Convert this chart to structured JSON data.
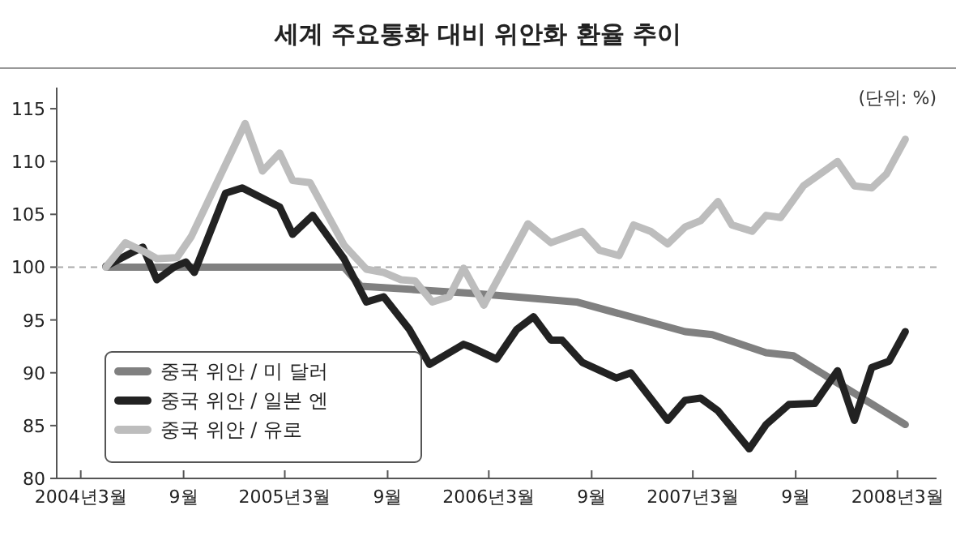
{
  "chart_data": {
    "type": "line",
    "title": "세계 주요통화 대비 위안화 환율 추이",
    "annotations": [
      "(단위: %)"
    ],
    "xlim": [
      "2004-01-18",
      "2008-05-10"
    ],
    "xticks": [
      {
        "value": "2004-03",
        "label": "2004년3월"
      },
      {
        "value": "2004-09",
        "label": "9월"
      },
      {
        "value": "2005-03",
        "label": "2005년3월"
      },
      {
        "value": "2005-09",
        "label": "9월"
      },
      {
        "value": "2006-03",
        "label": "2006년3월"
      },
      {
        "value": "2006-09",
        "label": "9월"
      },
      {
        "value": "2007-03",
        "label": "2007년3월"
      },
      {
        "value": "2007-09",
        "label": "9월"
      },
      {
        "value": "2008-03",
        "label": "2008년3월"
      }
    ],
    "ylim": [
      80,
      117
    ],
    "yticks": [
      80,
      85,
      90,
      95,
      100,
      105,
      110,
      115
    ],
    "grid": false,
    "legend": "bottom left",
    "marker": "none",
    "line_style": "solid",
    "ref_lines": [
      {
        "axis": "y",
        "value": 100,
        "color": "#aaaaaa",
        "line_style": "dashed"
      }
    ],
    "series": [
      {
        "name": "중국 위안 / 미 달러",
        "color": "#808080",
        "x": [
          "2004-04-15",
          "2005-06-15",
          "2005-07-15",
          "2006-02-05",
          "2006-08-05",
          "2007-02-15",
          "2007-04-05",
          "2007-07-10",
          "2007-08-28",
          "2007-12-01",
          "2008-03-15"
        ],
        "values": [
          100,
          100,
          98.2,
          97.5,
          96.7,
          93.9,
          93.6,
          91.9,
          91.6,
          88.5,
          85.1
        ]
      },
      {
        "name": "중국 위안 / 일본 엔",
        "color": "#222222",
        "x": [
          "2004-04-15",
          "2004-05-25",
          "2004-06-20",
          "2004-07-15",
          "2004-08-15",
          "2004-09-05",
          "2004-09-20",
          "2004-11-15",
          "2004-12-15",
          "2005-02-20",
          "2005-03-15",
          "2005-04-20",
          "2005-06-15",
          "2005-07-25",
          "2005-08-25",
          "2005-10-10",
          "2005-11-15",
          "2006-01-15",
          "2006-01-25",
          "2006-03-15",
          "2006-04-20",
          "2006-05-20",
          "2006-06-20",
          "2006-07-10",
          "2006-08-15",
          "2006-10-15",
          "2006-11-10",
          "2007-01-15",
          "2007-02-15",
          "2007-03-15",
          "2007-04-15",
          "2007-06-10",
          "2007-07-10",
          "2007-08-20",
          "2007-10-05",
          "2007-11-15",
          "2007-12-15",
          "2008-01-15",
          "2008-02-15",
          "2008-03-15"
        ],
        "values": [
          100.1,
          101.2,
          101.9,
          98.8,
          100,
          100.5,
          99.5,
          107.0,
          107.5,
          105.7,
          103.1,
          104.9,
          100.8,
          96.7,
          97.2,
          94.1,
          90.8,
          92.7,
          92.5,
          91.3,
          94.1,
          95.3,
          93.1,
          93.1,
          91.0,
          89.5,
          90.0,
          85.5,
          87.4,
          87.6,
          86.4,
          82.8,
          85.1,
          87.0,
          87.1,
          90.2,
          85.5,
          90.5,
          91.1,
          93.9
        ]
      },
      {
        "name": "중국 위안 / 유로",
        "color": "#bdbdbd",
        "x": [
          "2004-04-15",
          "2004-05-20",
          "2004-06-25",
          "2004-07-15",
          "2004-08-20",
          "2004-09-15",
          "2004-12-20",
          "2005-01-20",
          "2005-02-20",
          "2005-03-15",
          "2005-04-15",
          "2005-06-15",
          "2005-07-25",
          "2005-08-25",
          "2005-09-25",
          "2005-10-20",
          "2005-11-20",
          "2005-12-20",
          "2006-01-15",
          "2006-02-20",
          "2006-02-25",
          "2006-05-10",
          "2006-06-20",
          "2006-08-15",
          "2006-09-15",
          "2006-10-20",
          "2006-11-15",
          "2006-12-15",
          "2007-01-15",
          "2007-02-15",
          "2007-03-15",
          "2007-04-15",
          "2007-05-10",
          "2007-06-15",
          "2007-07-10",
          "2007-08-05",
          "2007-09-15",
          "2007-11-15",
          "2007-12-15",
          "2008-01-15",
          "2008-02-10",
          "2008-03-15"
        ],
        "values": [
          100,
          102.3,
          101.4,
          100.8,
          100.9,
          102.9,
          113.6,
          109.1,
          110.8,
          108.2,
          108.0,
          102.1,
          99.8,
          99.5,
          98.8,
          98.7,
          96.7,
          97.2,
          99.9,
          96.4,
          96.9,
          104.1,
          102.3,
          103.4,
          101.6,
          101.1,
          104.0,
          103.4,
          102.2,
          103.8,
          104.4,
          106.2,
          104.0,
          103.4,
          104.9,
          104.7,
          107.7,
          110.0,
          107.7,
          107.5,
          108.8,
          112.1
        ]
      }
    ]
  }
}
